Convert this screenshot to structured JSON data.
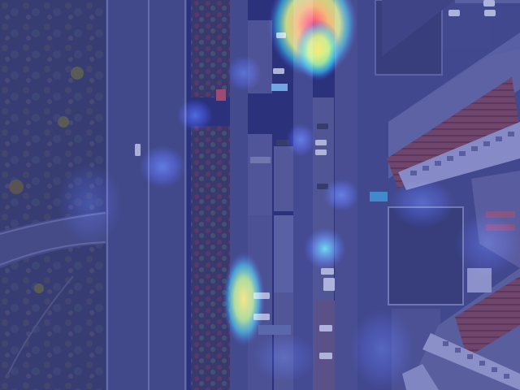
{
  "image": {
    "kind": "aerial-photo-with-heatmap-overlay",
    "overlay_tint": "#2d3a9a",
    "heat_colors": [
      "#1e32ff",
      "#00e0ff",
      "#f4ff00",
      "#ff2a00"
    ]
  }
}
